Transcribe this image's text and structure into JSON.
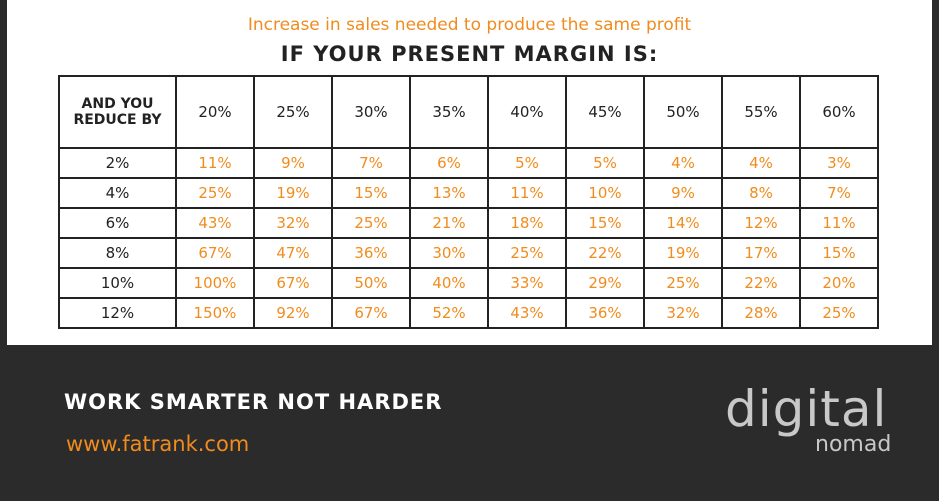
{
  "header": {
    "subtitle": "Increase in sales needed to produce the same profit",
    "title": "IF YOUR PRESENT MARGIN IS:"
  },
  "table": {
    "corner": "AND YOU REDUCE BY",
    "columns": [
      "20%",
      "25%",
      "30%",
      "35%",
      "40%",
      "45%",
      "50%",
      "55%",
      "60%"
    ],
    "rows": [
      [
        "2%",
        "11%",
        "9%",
        "7%",
        "6%",
        "5%",
        "5%",
        "4%",
        "4%",
        "3%"
      ],
      [
        "4%",
        "25%",
        "19%",
        "15%",
        "13%",
        "11%",
        "10%",
        "9%",
        "8%",
        "7%"
      ],
      [
        "6%",
        "43%",
        "32%",
        "25%",
        "21%",
        "18%",
        "15%",
        "14%",
        "12%",
        "11%"
      ],
      [
        "8%",
        "67%",
        "47%",
        "36%",
        "30%",
        "25%",
        "22%",
        "19%",
        "17%",
        "15%"
      ],
      [
        "10%",
        "100%",
        "67%",
        "50%",
        "40%",
        "33%",
        "29%",
        "25%",
        "22%",
        "20%"
      ],
      [
        "12%",
        "150%",
        "92%",
        "67%",
        "52%",
        "43%",
        "36%",
        "32%",
        "28%",
        "25%"
      ]
    ]
  },
  "footer": {
    "tagline": "WORK SMARTER NOT HARDER",
    "url": "www.fatrank.com",
    "logo_top": "digital",
    "logo_bottom": "nomad"
  }
}
